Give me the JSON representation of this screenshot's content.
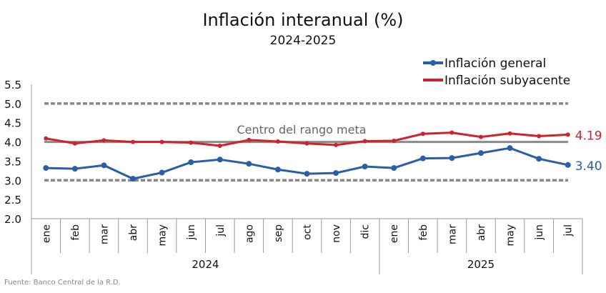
{
  "chart_data": {
    "type": "line",
    "title": "Inflación interanual (%)",
    "subtitle": "2024-2025",
    "categories": [
      "ene",
      "feb",
      "mar",
      "abr",
      "may",
      "jun",
      "jul",
      "ago",
      "sep",
      "oct",
      "nov",
      "dic",
      "ene",
      "feb",
      "mar",
      "abr",
      "may",
      "jun",
      "jul"
    ],
    "years": [
      {
        "label": "2024",
        "months": 12
      },
      {
        "label": "2025",
        "months": 7
      }
    ],
    "ylim": [
      2.0,
      5.5
    ],
    "yticks": [
      "2.0",
      "2.5",
      "3.0",
      "3.5",
      "4.0",
      "4.5",
      "5.0",
      "5.5"
    ],
    "reference_lines": [
      {
        "value": 5.0,
        "style": "dashed"
      },
      {
        "value": 3.0,
        "style": "dashed"
      },
      {
        "value": 4.0,
        "style": "solid",
        "label": "Centro del rango meta"
      }
    ],
    "legend_position": "top-right",
    "series": [
      {
        "name": "Inflación general",
        "color": "#2a5ea8",
        "values": [
          3.32,
          3.3,
          3.39,
          3.04,
          3.2,
          3.47,
          3.54,
          3.43,
          3.28,
          3.17,
          3.19,
          3.36,
          3.32,
          3.57,
          3.58,
          3.71,
          3.84,
          3.56,
          3.4
        ],
        "end_label": "3.40"
      },
      {
        "name": "Inflación subyacente",
        "color": "#d0222c",
        "values": [
          4.09,
          3.96,
          4.04,
          4.0,
          4.0,
          3.98,
          3.9,
          4.05,
          4.01,
          3.96,
          3.92,
          4.02,
          4.03,
          4.21,
          4.24,
          4.13,
          4.22,
          4.15,
          4.19
        ],
        "end_label": "4.19"
      }
    ]
  },
  "source": "Fuente: Banco Central de la R.D."
}
